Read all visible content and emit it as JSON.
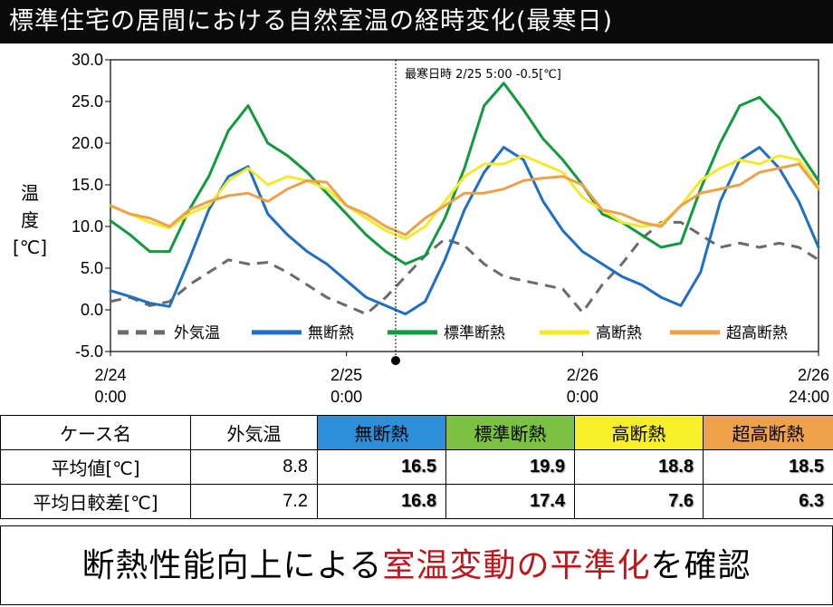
{
  "title": "標準住宅の居間における自然室温の経時変化(最寒日)",
  "y_title_chars": [
    "温",
    "度",
    "[℃]"
  ],
  "annotation": "最寒日時 2/25 5:00 -0.5[℃]",
  "x_tick_labels": [
    {
      "line1": "2/24",
      "line2": "0:00"
    },
    {
      "line1": "2/25",
      "line2": "0:00"
    },
    {
      "line1": "2/26",
      "line2": "0:00"
    },
    {
      "line1": "2/26",
      "line2": "24:00"
    }
  ],
  "chart_data": {
    "type": "line",
    "x_hours": [
      0,
      2,
      4,
      6,
      8,
      10,
      12,
      14,
      16,
      18,
      20,
      22,
      24,
      26,
      28,
      30,
      32,
      34,
      36,
      38,
      40,
      42,
      44,
      46,
      48,
      50,
      52,
      54,
      56,
      58,
      60,
      62,
      64,
      66,
      68,
      70,
      72
    ],
    "x_unit": "hours from 2/24 0:00",
    "ylim": [
      -5.0,
      30.0
    ],
    "yticks": [
      "30.0",
      "25.0",
      "20.0",
      "15.0",
      "10.0",
      "5.0",
      "0.0",
      "-5.0"
    ],
    "grid": false,
    "legend_position": "bottom inside plot",
    "series": [
      {
        "name": "外気温",
        "color": "#6b6b6b",
        "dashed": true,
        "values": [
          1.0,
          1.5,
          0.5,
          1.0,
          3.0,
          4.5,
          6.0,
          5.5,
          5.7,
          4.5,
          3.0,
          1.5,
          0.5,
          -0.5,
          1.5,
          4.0,
          6.5,
          8.5,
          7.7,
          5.5,
          4.0,
          3.5,
          3.0,
          2.5,
          -0.3,
          3.0,
          5.5,
          8.5,
          10.5,
          10.5,
          9.0,
          7.5,
          8.0,
          7.5,
          8.0,
          7.5,
          6.0
        ]
      },
      {
        "name": "無断熱",
        "color": "#1f6fc4",
        "dashed": false,
        "values": [
          2.3,
          1.6,
          0.8,
          0.4,
          6.0,
          12.0,
          16.0,
          17.2,
          11.5,
          9.0,
          7.0,
          5.5,
          3.5,
          1.5,
          0.5,
          -0.5,
          1.0,
          6.0,
          12.0,
          16.5,
          19.5,
          18.0,
          13.0,
          9.5,
          7.0,
          5.5,
          4.0,
          3.0,
          1.5,
          0.5,
          4.5,
          13.0,
          18.0,
          19.5,
          17.0,
          13.0,
          7.5
        ]
      },
      {
        "name": "標準断熱",
        "color": "#129a3e",
        "dashed": false,
        "values": [
          10.7,
          9.0,
          7.0,
          7.0,
          12.0,
          16.0,
          21.5,
          24.5,
          20.0,
          18.5,
          16.5,
          14.0,
          11.5,
          9.0,
          7.0,
          5.5,
          6.5,
          11.0,
          17.0,
          24.5,
          27.2,
          24.0,
          20.5,
          18.0,
          15.0,
          11.5,
          10.5,
          9.0,
          7.5,
          8.0,
          14.5,
          20.0,
          24.5,
          25.5,
          23.0,
          19.0,
          15.5
        ]
      },
      {
        "name": "高断熱",
        "color": "#f2ea2a",
        "dashed": false,
        "values": [
          12.5,
          11.5,
          10.5,
          9.8,
          11.5,
          12.5,
          15.5,
          17.0,
          15.0,
          16.0,
          15.5,
          14.5,
          12.5,
          11.0,
          9.5,
          8.5,
          10.0,
          13.0,
          16.0,
          17.5,
          17.5,
          18.5,
          17.5,
          16.5,
          13.5,
          12.0,
          10.5,
          10.0,
          10.3,
          12.5,
          15.5,
          17.0,
          18.0,
          17.5,
          18.5,
          18.0,
          14.7
        ]
      },
      {
        "name": "超高断熱",
        "color": "#eda24a",
        "dashed": false,
        "values": [
          12.5,
          11.5,
          11.0,
          10.0,
          12.0,
          13.0,
          13.7,
          14.0,
          13.0,
          14.5,
          15.5,
          15.3,
          12.5,
          11.5,
          10.0,
          9.0,
          11.0,
          12.5,
          14.0,
          14.0,
          14.5,
          15.5,
          15.8,
          16.0,
          15.0,
          12.0,
          11.5,
          10.5,
          10.0,
          12.5,
          14.0,
          14.5,
          15.0,
          16.5,
          17.0,
          17.5,
          14.5
        ]
      }
    ],
    "vline_hour": 29,
    "vline_marker_y": -5.0
  },
  "table": {
    "headers": [
      "ケース名",
      "外気温",
      "無断熱",
      "標準断熱",
      "高断熱",
      "超高断熱"
    ],
    "header_colors": [
      "#ffffff",
      "#ffffff",
      "#2e8fd9",
      "#7bc142",
      "#f6ef2a",
      "#eda24a"
    ],
    "rows": [
      {
        "label": "平均値[℃]",
        "values": [
          "8.8",
          "16.5",
          "19.9",
          "18.8",
          "18.5"
        ]
      },
      {
        "label": "平均日較差[℃]",
        "values": [
          "7.2",
          "16.8",
          "17.4",
          "7.6",
          "6.3"
        ]
      }
    ]
  },
  "footer": {
    "pre": "断熱性能向上による",
    "highlight": "室温変動の平準化",
    "post": "を確認"
  }
}
